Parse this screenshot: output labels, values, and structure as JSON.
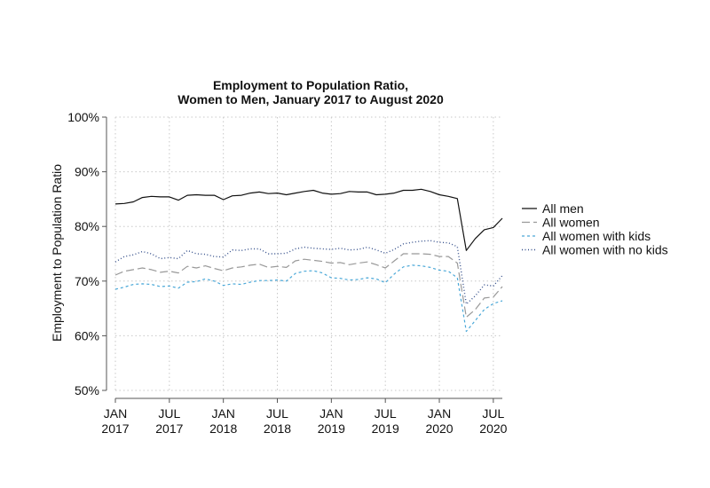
{
  "chart_data": {
    "type": "line",
    "title": [
      "Employment to Population Ratio,",
      "Women to Men, January 2017 to August 2020"
    ],
    "xlabel": "",
    "ylabel": "Employment to Population Ratio",
    "ylim": [
      50,
      100
    ],
    "y_ticks": [
      50,
      60,
      70,
      80,
      90,
      100
    ],
    "y_tick_labels": [
      "50%",
      "60%",
      "70%",
      "80%",
      "90%",
      "100%"
    ],
    "x_ticks": [
      {
        "index": 0,
        "month": "JAN",
        "year": "2017"
      },
      {
        "index": 6,
        "month": "JUL",
        "year": "2017"
      },
      {
        "index": 12,
        "month": "JAN",
        "year": "2018"
      },
      {
        "index": 18,
        "month": "JUL",
        "year": "2018"
      },
      {
        "index": 24,
        "month": "JAN",
        "year": "2019"
      },
      {
        "index": 30,
        "month": "JUL",
        "year": "2019"
      },
      {
        "index": 36,
        "month": "JAN",
        "year": "2020"
      },
      {
        "index": 42,
        "month": "JUL",
        "year": "2020"
      }
    ],
    "x_range": [
      0,
      43
    ],
    "grid": true,
    "legend_position": "right",
    "series": [
      {
        "name": "All men",
        "color": "#111111",
        "dash": "solid",
        "values": [
          84.1,
          84.2,
          84.5,
          85.3,
          85.5,
          85.4,
          85.4,
          84.8,
          85.7,
          85.8,
          85.7,
          85.7,
          84.9,
          85.6,
          85.7,
          86.1,
          86.3,
          86.0,
          86.1,
          85.8,
          86.1,
          86.4,
          86.6,
          86.1,
          85.9,
          86.0,
          86.4,
          86.3,
          86.3,
          85.8,
          85.9,
          86.1,
          86.6,
          86.6,
          86.8,
          86.4,
          85.8,
          85.5,
          85.1,
          75.6,
          77.8,
          79.4,
          79.8,
          81.5
        ]
      },
      {
        "name": "All women",
        "color": "#999999",
        "dash": "longdash",
        "values": [
          71.1,
          71.8,
          72.1,
          72.4,
          72.1,
          71.6,
          71.8,
          71.5,
          72.7,
          72.4,
          72.8,
          72.3,
          71.9,
          72.4,
          72.6,
          72.9,
          73.1,
          72.5,
          72.7,
          72.5,
          73.7,
          74.0,
          73.8,
          73.6,
          73.3,
          73.4,
          73.0,
          73.3,
          73.5,
          73.0,
          72.4,
          73.7,
          75.0,
          75.0,
          75.0,
          74.9,
          74.5,
          74.5,
          73.3,
          63.4,
          64.8,
          66.9,
          67.1,
          69.0
        ]
      },
      {
        "name": "All women with kids",
        "color": "#4aa8d8",
        "dash": "dash",
        "values": [
          68.5,
          68.9,
          69.4,
          69.5,
          69.4,
          69.0,
          69.1,
          68.7,
          69.8,
          69.9,
          70.4,
          70.0,
          69.2,
          69.5,
          69.4,
          69.8,
          70.1,
          70.1,
          70.2,
          70.0,
          71.4,
          71.8,
          71.9,
          71.5,
          70.6,
          70.5,
          70.2,
          70.3,
          70.6,
          70.4,
          69.7,
          71.3,
          72.6,
          72.9,
          72.8,
          72.5,
          72.0,
          71.8,
          70.6,
          60.8,
          62.8,
          64.8,
          65.9,
          66.4
        ]
      },
      {
        "name": "All women with no kids",
        "color": "#334e8a",
        "dash": "dot",
        "values": [
          73.5,
          74.5,
          74.8,
          75.4,
          75.0,
          74.1,
          74.3,
          74.1,
          75.6,
          75.0,
          74.9,
          74.5,
          74.4,
          75.7,
          75.6,
          75.9,
          75.9,
          75.0,
          75.0,
          75.1,
          75.9,
          76.2,
          76.0,
          75.9,
          75.8,
          76.0,
          75.7,
          75.8,
          76.2,
          75.7,
          75.1,
          75.8,
          76.8,
          77.1,
          77.3,
          77.4,
          77.1,
          77.0,
          76.3,
          65.8,
          67.3,
          69.3,
          69.1,
          71.0
        ]
      }
    ]
  }
}
